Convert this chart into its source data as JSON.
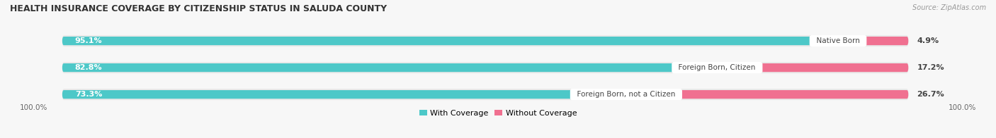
{
  "title": "HEALTH INSURANCE COVERAGE BY CITIZENSHIP STATUS IN SALUDA COUNTY",
  "source": "Source: ZipAtlas.com",
  "categories": [
    "Native Born",
    "Foreign Born, Citizen",
    "Foreign Born, not a Citizen"
  ],
  "with_coverage": [
    95.1,
    82.8,
    73.3
  ],
  "without_coverage": [
    4.9,
    17.2,
    26.7
  ],
  "color_with": "#4dc8c8",
  "color_without": "#f07090",
  "color_bg_strip": "#e8e8e8",
  "color_fig_bg": "#f7f7f7",
  "title_fontsize": 9,
  "source_fontsize": 7,
  "label_fontsize": 8,
  "legend_fontsize": 8,
  "left_label": "100.0%",
  "right_label": "100.0%",
  "fig_width": 14.06,
  "fig_height": 1.96
}
